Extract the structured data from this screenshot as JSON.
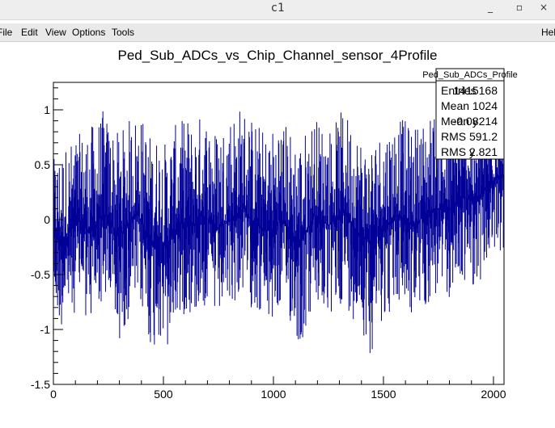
{
  "window": {
    "title": "c1",
    "minimize_glyph": "_",
    "maximize_glyph": "▫",
    "close_glyph": "×"
  },
  "menubar": {
    "file": "File",
    "edit": "Edit",
    "view": "View",
    "options": "Options",
    "tools": "Tools",
    "help": "Help"
  },
  "stats_box": {
    "title": "Ped_Sub_ADCs_Profile",
    "rows": [
      {
        "label": "Entries",
        "value": "1415168"
      },
      {
        "label": "Mean",
        "value": "1024"
      },
      {
        "label": "Mean y",
        "value": "-0.08214"
      },
      {
        "label": "RMS",
        "value": "591.2"
      },
      {
        "label": "RMS y",
        "value": "2.821"
      }
    ]
  },
  "colors": {
    "series": "#000099",
    "frame": "#000000",
    "background": "#ffffff"
  },
  "chart_data": {
    "type": "line",
    "title": "Ped_Sub_ADCs_vs_Chip_Channel_sensor_4Profile",
    "xlabel": "",
    "ylabel": "",
    "xlim": [
      0,
      2048
    ],
    "ylim": [
      -1.5,
      1.25
    ],
    "x_ticks": [
      "0",
      "500",
      "1000",
      "1500",
      "2000"
    ],
    "y_ticks": [
      "-1.5",
      "-1",
      "-0.5",
      "0",
      "0.5",
      "1"
    ],
    "grid": false,
    "legend": "none",
    "series": [
      {
        "bins": 2048,
        "x": [
          0,
          32,
          64,
          96,
          128,
          160,
          192,
          224,
          256,
          288,
          320,
          352,
          384,
          416,
          448,
          480,
          512,
          544,
          576,
          608,
          640,
          672,
          704,
          736,
          768,
          800,
          832,
          864,
          896,
          928,
          960,
          992,
          1024,
          1056,
          1088,
          1120,
          1152,
          1184,
          1216,
          1248,
          1280,
          1312,
          1344,
          1376,
          1408,
          1440,
          1472,
          1504,
          1536,
          1568,
          1600,
          1632,
          1664,
          1696,
          1728,
          1760,
          1792,
          1824,
          1856,
          1888,
          1920,
          1952,
          1984,
          2016
        ],
        "y_center": [
          -0.1,
          -0.2,
          -0.15,
          -0.05,
          0.0,
          -0.1,
          -0.05,
          0.05,
          0.0,
          -0.15,
          -0.1,
          0.0,
          0.05,
          -0.1,
          -0.2,
          -0.15,
          -0.25,
          -0.1,
          -0.05,
          0.0,
          -0.05,
          0.05,
          0.0,
          -0.1,
          -0.05,
          0.0,
          0.05,
          0.1,
          0.0,
          -0.05,
          -0.1,
          -0.1,
          0.0,
          -0.05,
          -0.15,
          -0.2,
          -0.1,
          0.05,
          0.0,
          -0.05,
          0.0,
          0.1,
          0.0,
          -0.1,
          -0.15,
          -0.2,
          -0.1,
          -0.05,
          0.0,
          0.05,
          0.0,
          -0.05,
          0.0,
          0.05,
          0.1,
          0.1,
          0.05,
          0.15,
          0.2,
          0.2,
          0.15,
          0.25,
          0.3,
          0.4
        ],
        "y_min": [
          -0.85,
          -1.0,
          -0.9,
          -0.85,
          -0.8,
          -1.0,
          -0.85,
          -0.75,
          -0.8,
          -1.2,
          -1.0,
          -0.85,
          -0.8,
          -0.95,
          -1.25,
          -1.1,
          -1.35,
          -1.0,
          -0.9,
          -0.85,
          -0.9,
          -0.8,
          -0.85,
          -0.95,
          -0.9,
          -0.8,
          -0.75,
          -0.7,
          -0.8,
          -0.85,
          -0.95,
          -1.0,
          -0.85,
          -0.9,
          -1.0,
          -1.2,
          -1.0,
          -0.8,
          -0.85,
          -0.95,
          -0.9,
          -0.75,
          -0.85,
          -0.95,
          -1.05,
          -1.25,
          -1.0,
          -0.9,
          -0.85,
          -0.8,
          -0.85,
          -0.9,
          -0.85,
          -0.8,
          -0.75,
          -0.7,
          -0.75,
          -0.65,
          -0.6,
          -0.55,
          -0.65,
          -0.5,
          -0.45,
          -0.3
        ],
        "y_max": [
          0.55,
          0.65,
          0.7,
          0.75,
          0.8,
          0.85,
          0.9,
          1.0,
          0.9,
          0.8,
          0.85,
          0.95,
          1.0,
          0.9,
          0.75,
          0.8,
          0.7,
          0.85,
          0.9,
          0.95,
          0.85,
          1.0,
          0.95,
          0.85,
          0.9,
          1.0,
          1.05,
          1.05,
          0.95,
          0.9,
          0.8,
          0.85,
          0.95,
          0.9,
          0.8,
          0.75,
          0.85,
          0.95,
          0.9,
          0.85,
          0.9,
          1.0,
          0.95,
          0.85,
          0.75,
          0.7,
          0.8,
          0.85,
          0.9,
          0.95,
          0.9,
          0.85,
          0.9,
          0.95,
          1.0,
          1.0,
          0.95,
          1.05,
          1.05,
          1.0,
          0.9,
          0.95,
          1.0,
          1.1
        ]
      }
    ]
  }
}
